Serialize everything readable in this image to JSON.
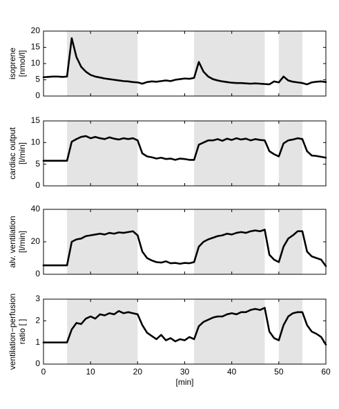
{
  "chart_data": [
    {
      "type": "line",
      "ylabel": [
        "isoprene",
        "[nmol/l]"
      ],
      "xlim": [
        0,
        60
      ],
      "xticks": [
        0,
        10,
        20,
        30,
        40,
        50,
        60
      ],
      "xtick_labels": false,
      "ylim": [
        0,
        20
      ],
      "yticks": [
        0,
        5,
        10,
        15,
        20
      ],
      "shaded_regions": [
        [
          5,
          20
        ],
        [
          32,
          47
        ],
        [
          50,
          55
        ]
      ],
      "color": "#000000",
      "x": [
        0,
        1,
        2,
        3,
        4,
        5,
        6,
        7,
        8,
        9,
        10,
        11,
        12,
        13,
        14,
        15,
        16,
        17,
        18,
        19,
        20,
        21,
        22,
        23,
        24,
        25,
        26,
        27,
        28,
        29,
        30,
        31,
        32,
        33,
        34,
        35,
        36,
        37,
        38,
        39,
        40,
        41,
        42,
        43,
        44,
        45,
        46,
        47,
        48,
        49,
        50,
        51,
        52,
        53,
        54,
        55,
        56,
        57,
        58,
        59,
        60
      ],
      "values": [
        5.8,
        5.9,
        6,
        6,
        5.9,
        6,
        17.8,
        12,
        9,
        7.5,
        6.5,
        6,
        5.7,
        5.4,
        5.2,
        5,
        4.8,
        4.6,
        4.5,
        4.3,
        4.2,
        3.8,
        4.3,
        4.5,
        4.4,
        4.6,
        4.8,
        4.6,
        5,
        5.2,
        5.4,
        5.3,
        5.6,
        10.5,
        7.5,
        6,
        5.2,
        4.8,
        4.5,
        4.3,
        4.1,
        4,
        4,
        3.9,
        3.8,
        3.9,
        3.8,
        3.7,
        3.6,
        4.5,
        4.2,
        6,
        4.8,
        4.4,
        4.2,
        4,
        3.6,
        4.2,
        4.4,
        4.5,
        4.3
      ]
    },
    {
      "type": "line",
      "ylabel": [
        "cardiac output",
        "[l/min]"
      ],
      "xlim": [
        0,
        60
      ],
      "xticks": [
        0,
        10,
        20,
        30,
        40,
        50,
        60
      ],
      "xtick_labels": false,
      "ylim": [
        0,
        15
      ],
      "yticks": [
        0,
        5,
        10,
        15
      ],
      "shaded_regions": [
        [
          5,
          20
        ],
        [
          32,
          47
        ],
        [
          50,
          55
        ]
      ],
      "color": "#000000",
      "x": [
        0,
        1,
        2,
        3,
        4,
        5,
        6,
        7,
        8,
        9,
        10,
        11,
        12,
        13,
        14,
        15,
        16,
        17,
        18,
        19,
        20,
        21,
        22,
        23,
        24,
        25,
        26,
        27,
        28,
        29,
        30,
        31,
        32,
        33,
        34,
        35,
        36,
        37,
        38,
        39,
        40,
        41,
        42,
        43,
        44,
        45,
        46,
        47,
        48,
        49,
        50,
        51,
        52,
        53,
        54,
        55,
        56,
        57,
        58,
        59,
        60
      ],
      "values": [
        5.8,
        5.8,
        5.8,
        5.8,
        5.8,
        5.8,
        10.2,
        10.8,
        11.3,
        11.5,
        11,
        11.3,
        11,
        10.8,
        11.2,
        10.9,
        10.7,
        11,
        10.8,
        11,
        10.5,
        7.5,
        6.8,
        6.6,
        6.3,
        6.5,
        6.2,
        6.3,
        6,
        6.3,
        6.2,
        6,
        6,
        9.5,
        10,
        10.5,
        10.5,
        10.8,
        10.4,
        10.9,
        10.6,
        11,
        10.7,
        10.9,
        10.5,
        10.8,
        10.6,
        10.5,
        8,
        7.3,
        6.8,
        9.8,
        10.5,
        10.7,
        11,
        10.8,
        8,
        7,
        6.9,
        6.7,
        6.5
      ]
    },
    {
      "type": "line",
      "ylabel": [
        "alv. ventilation",
        "[l/min]"
      ],
      "xlim": [
        0,
        60
      ],
      "xticks": [
        0,
        10,
        20,
        30,
        40,
        50,
        60
      ],
      "xtick_labels": false,
      "ylim": [
        0,
        40
      ],
      "yticks": [
        0,
        20,
        40
      ],
      "shaded_regions": [
        [
          5,
          20
        ],
        [
          32,
          47
        ],
        [
          50,
          55
        ]
      ],
      "color": "#000000",
      "x": [
        0,
        1,
        2,
        3,
        4,
        5,
        6,
        7,
        8,
        9,
        10,
        11,
        12,
        13,
        14,
        15,
        16,
        17,
        18,
        19,
        20,
        21,
        22,
        23,
        24,
        25,
        26,
        27,
        28,
        29,
        30,
        31,
        32,
        33,
        34,
        35,
        36,
        37,
        38,
        39,
        40,
        41,
        42,
        43,
        44,
        45,
        46,
        47,
        48,
        49,
        50,
        51,
        52,
        53,
        54,
        55,
        56,
        57,
        58,
        59,
        60
      ],
      "values": [
        5.5,
        5.5,
        5.5,
        5.5,
        5.5,
        5.5,
        20,
        21.5,
        22,
        23.5,
        24,
        24.5,
        25,
        24.5,
        25.5,
        25,
        25.8,
        25.5,
        26,
        26.5,
        24,
        14,
        10,
        8.5,
        7.5,
        7.2,
        8,
        6.8,
        7,
        6.5,
        7,
        6.8,
        7.5,
        17,
        20,
        21.5,
        22.5,
        23.5,
        24,
        25,
        24.5,
        25.5,
        26,
        25.5,
        26.5,
        27,
        26.5,
        27.5,
        12,
        9,
        7.5,
        17,
        22,
        24,
        26.5,
        26.5,
        14,
        11,
        10,
        9,
        5
      ]
    },
    {
      "type": "line",
      "ylabel": [
        "ventilation−perfusion",
        "ratio [ ]"
      ],
      "xlabel": "[min]",
      "xlim": [
        0,
        60
      ],
      "xticks": [
        0,
        10,
        20,
        30,
        40,
        50,
        60
      ],
      "xtick_labels": true,
      "ylim": [
        0,
        3
      ],
      "yticks": [
        0,
        1,
        2,
        3
      ],
      "shaded_regions": [
        [
          5,
          20
        ],
        [
          32,
          47
        ],
        [
          50,
          55
        ]
      ],
      "color": "#000000",
      "x": [
        0,
        1,
        2,
        3,
        4,
        5,
        6,
        7,
        8,
        9,
        10,
        11,
        12,
        13,
        14,
        15,
        16,
        17,
        18,
        19,
        20,
        21,
        22,
        23,
        24,
        25,
        26,
        27,
        28,
        29,
        30,
        31,
        32,
        33,
        34,
        35,
        36,
        37,
        38,
        39,
        40,
        41,
        42,
        43,
        44,
        45,
        46,
        47,
        48,
        49,
        50,
        51,
        52,
        53,
        54,
        55,
        56,
        57,
        58,
        59,
        60
      ],
      "values": [
        1,
        1,
        1,
        1,
        1,
        1,
        1.6,
        1.9,
        1.85,
        2.1,
        2.2,
        2.1,
        2.3,
        2.25,
        2.35,
        2.3,
        2.45,
        2.35,
        2.4,
        2.35,
        2.3,
        1.8,
        1.45,
        1.3,
        1.15,
        1.35,
        1.1,
        1.2,
        1.05,
        1.15,
        1.1,
        1.25,
        1.15,
        1.75,
        1.95,
        2.05,
        2.15,
        2.2,
        2.2,
        2.3,
        2.35,
        2.3,
        2.4,
        2.4,
        2.5,
        2.55,
        2.5,
        2.6,
        1.5,
        1.2,
        1.1,
        1.8,
        2.2,
        2.35,
        2.4,
        2.4,
        1.8,
        1.5,
        1.4,
        1.25,
        0.9
      ]
    }
  ]
}
